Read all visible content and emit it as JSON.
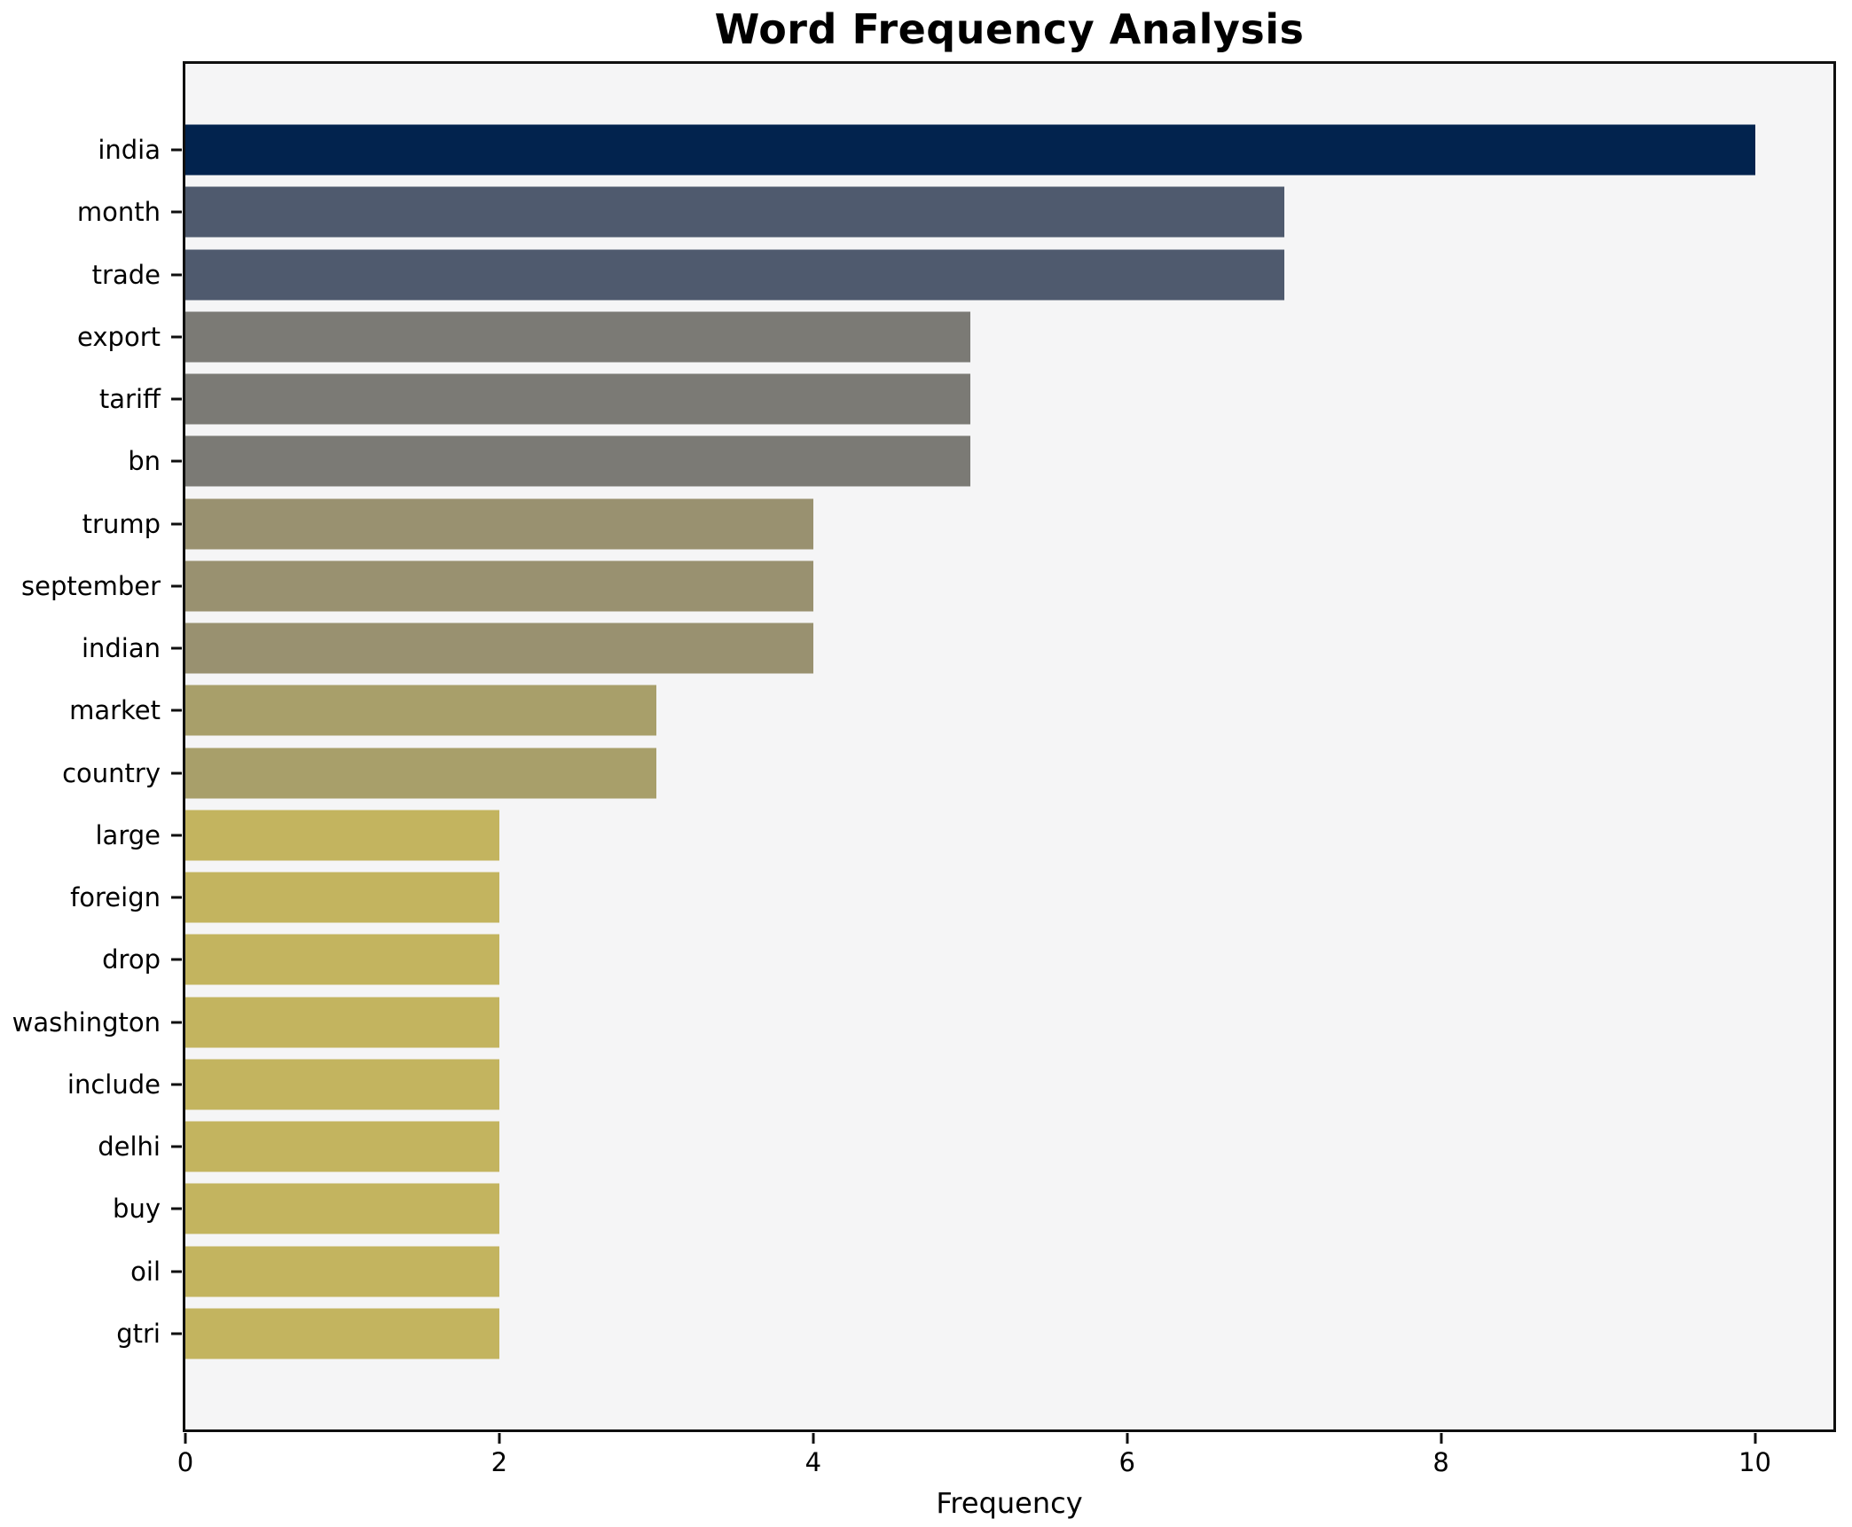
{
  "chart_data": {
    "type": "bar",
    "orientation": "horizontal",
    "title": "Word Frequency Analysis",
    "xlabel": "Frequency",
    "ylabel": "",
    "categories": [
      "india",
      "month",
      "trade",
      "export",
      "tariff",
      "bn",
      "trump",
      "september",
      "indian",
      "market",
      "country",
      "large",
      "foreign",
      "drop",
      "washington",
      "include",
      "delhi",
      "buy",
      "oil",
      "gtri"
    ],
    "values": [
      10,
      7,
      7,
      5,
      5,
      5,
      4,
      4,
      4,
      3,
      3,
      2,
      2,
      2,
      2,
      2,
      2,
      2,
      2,
      2
    ],
    "bar_colors": [
      "#02234e",
      "#4f5a6e",
      "#4f5a6e",
      "#7b7a75",
      "#7b7a75",
      "#7b7a75",
      "#999170",
      "#999170",
      "#999170",
      "#a89f6a",
      "#a89f6a",
      "#c3b45f",
      "#c3b45f",
      "#c3b45f",
      "#c3b45f",
      "#c3b45f",
      "#c3b45f",
      "#c3b45f",
      "#c3b45f",
      "#c3b45f"
    ],
    "xlim": [
      0,
      10.5
    ],
    "x_ticks": [
      0,
      2,
      4,
      6,
      8,
      10
    ],
    "grid": false,
    "legend": null,
    "plot_background": "#f5f5f6",
    "figure_background": "#ffffff",
    "spine_color": "#0f0f0f"
  }
}
